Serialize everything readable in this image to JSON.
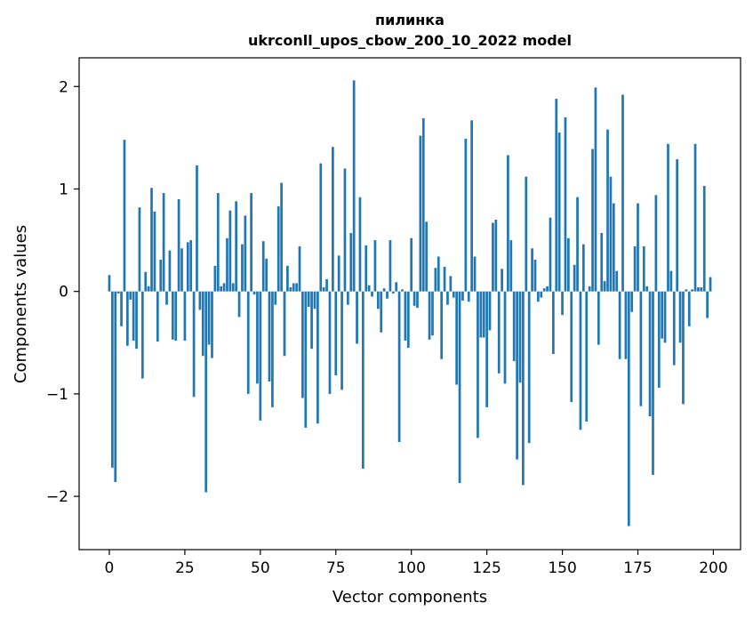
{
  "chart_data": {
    "type": "bar",
    "title": "пилинка",
    "subtitle": "ukrconll_upos_cbow_200_10_2022 model",
    "xlabel": "Vector components",
    "ylabel": "Components values",
    "xlim": [
      -10,
      209
    ],
    "ylim": [
      -2.52,
      2.28
    ],
    "x_ticks": [
      0,
      25,
      50,
      75,
      100,
      125,
      150,
      175,
      200
    ],
    "x_tick_labels": [
      "0",
      "25",
      "50",
      "75",
      "100",
      "125",
      "150",
      "175",
      "200"
    ],
    "y_ticks": [
      -2,
      -1,
      0,
      1,
      2
    ],
    "y_tick_labels": [
      "−2",
      "−1",
      "0",
      "1",
      "2"
    ],
    "grid": false,
    "bar_color": "#1f77b4",
    "values": [
      0.16,
      -1.72,
      -1.86,
      -0.02,
      -0.34,
      1.48,
      -0.53,
      -0.08,
      -0.48,
      -0.56,
      0.82,
      -0.85,
      0.19,
      0.05,
      1.01,
      0.78,
      -0.49,
      0.31,
      0.96,
      -0.13,
      0.4,
      -0.47,
      -0.48,
      0.9,
      0.42,
      -0.48,
      0.48,
      0.5,
      -1.03,
      1.23,
      -0.18,
      -0.63,
      -1.96,
      -0.52,
      -0.65,
      0.25,
      0.96,
      0.05,
      0.08,
      0.52,
      0.79,
      0.08,
      0.88,
      -0.25,
      0.46,
      0.74,
      -1.0,
      0.96,
      -0.03,
      -0.9,
      -1.26,
      0.49,
      0.32,
      -0.88,
      -1.13,
      -0.13,
      0.83,
      1.06,
      -0.63,
      0.25,
      0.04,
      0.08,
      0.08,
      0.44,
      -1.04,
      -1.33,
      -0.15,
      -0.56,
      -0.17,
      -1.29,
      1.25,
      0.04,
      0.12,
      -1.0,
      1.41,
      -0.82,
      0.35,
      -0.96,
      1.2,
      -0.13,
      0.57,
      2.06,
      -0.51,
      0.92,
      -1.73,
      0.45,
      0.06,
      -0.05,
      0.5,
      -0.17,
      -0.4,
      0.03,
      -0.07,
      0.5,
      -0.02,
      0.09,
      -1.47,
      0.02,
      -0.48,
      -0.55,
      0.52,
      -0.14,
      -0.16,
      1.52,
      1.69,
      0.68,
      -0.47,
      -0.43,
      0.23,
      0.34,
      -0.66,
      0.24,
      -0.13,
      0.15,
      -0.06,
      -0.91,
      -1.87,
      -0.09,
      1.49,
      -0.1,
      1.67,
      0.34,
      -1.43,
      -0.45,
      -0.45,
      -1.13,
      -0.38,
      0.67,
      0.7,
      -0.8,
      0.22,
      -0.9,
      1.33,
      0.5,
      -0.68,
      -1.64,
      -0.89,
      -1.89,
      1.12,
      -1.48,
      0.42,
      0.31,
      -0.1,
      -0.06,
      0.03,
      0.05,
      0.72,
      -0.61,
      1.88,
      1.55,
      -0.23,
      1.7,
      0.52,
      -1.08,
      0.26,
      0.92,
      -1.35,
      0.46,
      -1.27,
      0.05,
      1.39,
      1.99,
      -0.52,
      0.57,
      0.1,
      1.58,
      1.12,
      0.86,
      0.2,
      -0.66,
      1.92,
      -0.66,
      -2.29,
      -0.2,
      0.44,
      0.86,
      -1.12,
      0.44,
      0.05,
      -1.22,
      -1.79,
      0.94,
      -0.94,
      -0.46,
      -0.5,
      1.44,
      0.2,
      -0.72,
      1.29,
      -0.5,
      -1.1,
      0.02,
      -0.34,
      0.02,
      1.44,
      0.04,
      0.04,
      1.03,
      -0.26,
      0.14
    ]
  }
}
